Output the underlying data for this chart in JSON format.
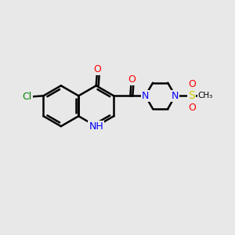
{
  "bg_color": "#e8e8e8",
  "bond_color": "#000000",
  "line_width": 1.8,
  "atom_colors": {
    "N": "#0000ff",
    "O": "#ff0000",
    "Cl": "#008000",
    "S": "#cccc00",
    "C": "#000000"
  },
  "font_size": 9,
  "small_font_size": 7.5,
  "r_hex": 0.88
}
